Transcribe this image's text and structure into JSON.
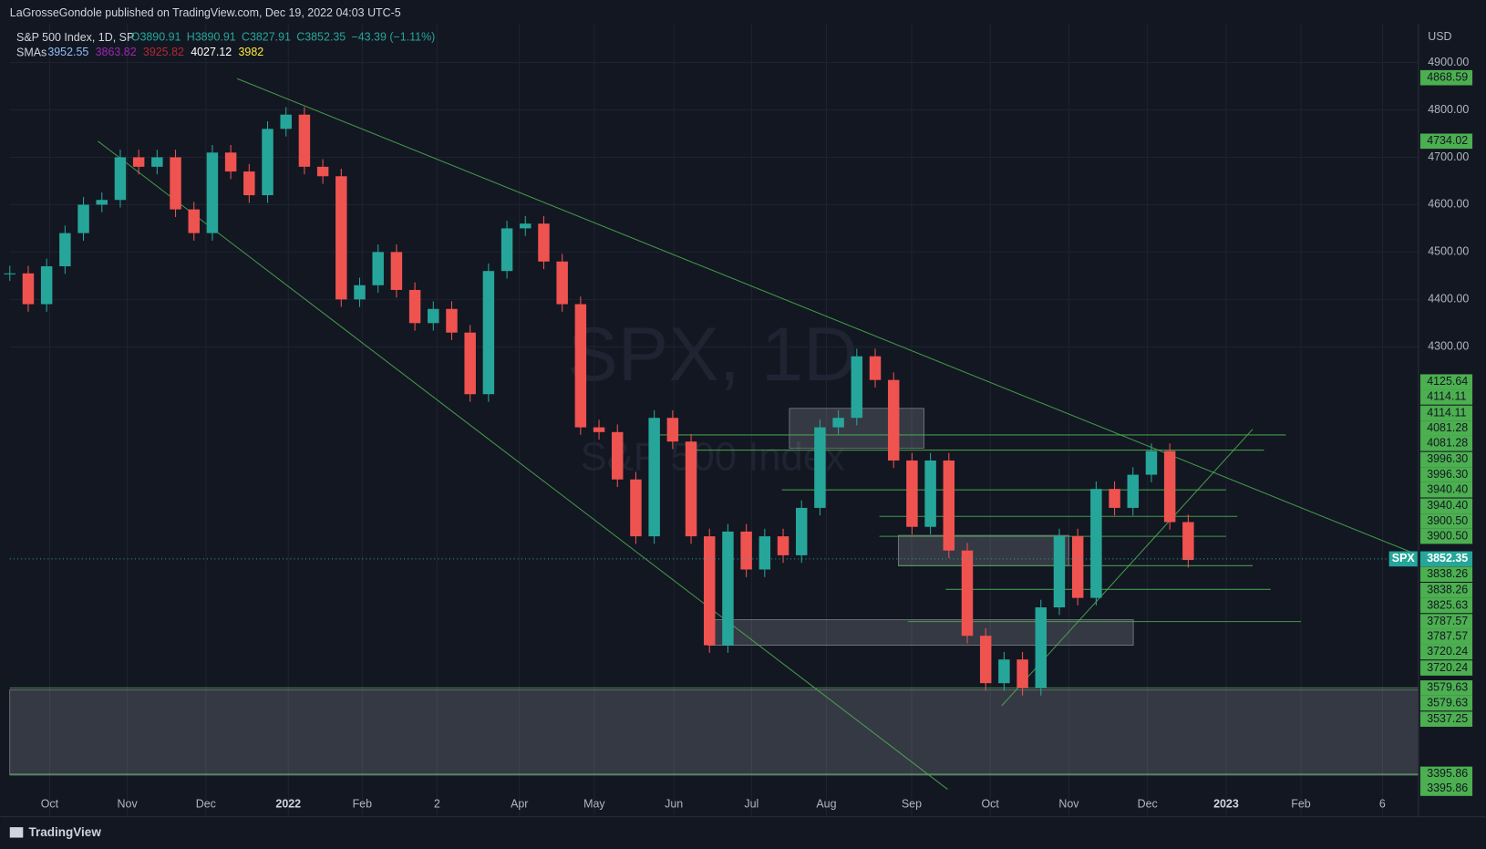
{
  "header": "LaGrosseGondole published on TradingView.com, Dec 19, 2022 04:03 UTC-5",
  "footer": "TradingView",
  "chart_data": {
    "type": "candlestick",
    "symbol": "S&P 500 Index, 1D, SP",
    "ohlc_labels": [
      "O3890.91",
      "H3890.91",
      "C3827.91",
      "C3852.35"
    ],
    "change": "−43.39 (−1.11%)",
    "sma_title": "SMAs",
    "sma_labels": [
      {
        "text": "3952.55",
        "color": "#90bff9"
      },
      {
        "text": "3863.82",
        "color": "#9c27b0"
      },
      {
        "text": "3925.82",
        "color": "#b22833"
      },
      {
        "text": "4027.12",
        "color": "#ffffff"
      },
      {
        "text": "3982",
        "color": "#ffeb3b"
      }
    ],
    "watermark": "SPX, 1D",
    "watermark_sub": "S&P 500 Index",
    "currency": "USD",
    "ticker": "SPX",
    "last_price": 3852.35,
    "last_price_label": "3852.35",
    "ylim": [
      3356,
      4982
    ],
    "yticks": [
      {
        "value": 4900,
        "label": "4900.00"
      },
      {
        "value": 4800,
        "label": "4800.00"
      },
      {
        "value": 4700,
        "label": "4700.00"
      },
      {
        "value": 4600,
        "label": "4600.00"
      },
      {
        "value": 4500,
        "label": "4500.00"
      },
      {
        "value": 4400,
        "label": "4400.00"
      },
      {
        "value": 4300,
        "label": "4300.00"
      }
    ],
    "xticks": [
      "Oct",
      "Nov",
      "Dec",
      "2022",
      "Feb",
      "2",
      "Apr",
      "May",
      "Jun",
      "Jul",
      "Aug",
      "Sep",
      "Oct",
      "Nov",
      "Dec",
      "2023",
      "Feb",
      "6"
    ],
    "price_labels": [
      "4868.59",
      "4734.02",
      "4125.64",
      "4114.11",
      "4114.11",
      "4081.28",
      "4081.28",
      "3996.30",
      "3996.30",
      "3940.40",
      "3940.40",
      "3900.50",
      "3900.50",
      "3838.26",
      "3838.26",
      "3825.63",
      "3787.57",
      "3787.57",
      "3720.24",
      "3720.24",
      "3579.63",
      "3579.63",
      "3537.25",
      "3395.86",
      "3395.86"
    ],
    "values": [
      4455,
      4390,
      4470,
      4540,
      4600,
      4610,
      4700,
      4680,
      4700,
      4590,
      4540,
      4710,
      4670,
      4620,
      4760,
      4790,
      4680,
      4660,
      4400,
      4430,
      4500,
      4420,
      4350,
      4380,
      4330,
      4200,
      4460,
      4550,
      4560,
      4480,
      4390,
      4130,
      4120,
      4020,
      3900,
      4150,
      4100,
      3900,
      3670,
      3910,
      3830,
      3900,
      3860,
      3960,
      4130,
      4150,
      4280,
      4230,
      4060,
      3920,
      4060,
      3870,
      3690,
      3590,
      3640,
      3580,
      3750,
      3900,
      3770,
      4000,
      3960,
      4030,
      4080,
      3930,
      3850
    ],
    "up_color": "#26a69a",
    "down_color": "#ef5350"
  }
}
